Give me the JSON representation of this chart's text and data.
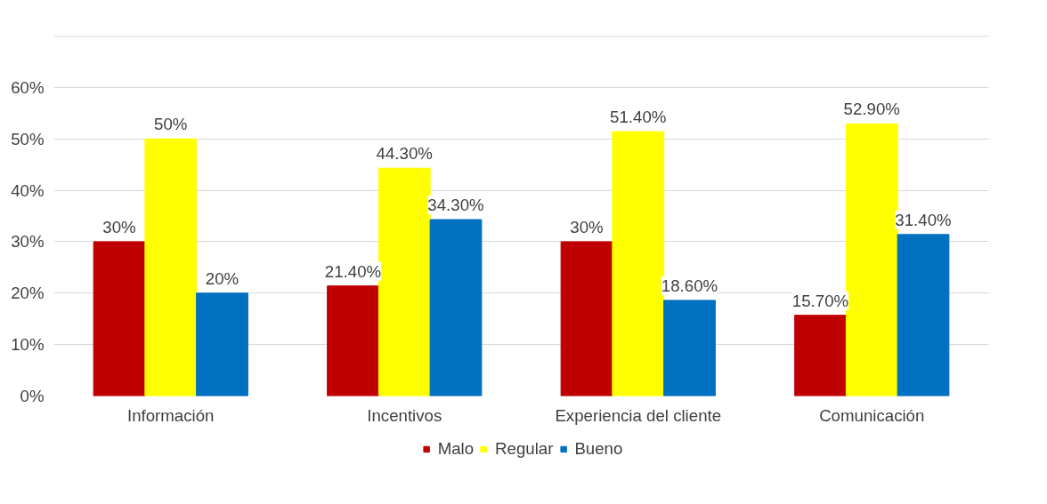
{
  "chart_data": {
    "type": "bar",
    "categories": [
      "Información",
      "Incentivos",
      "Experiencia del cliente",
      "Comunicación"
    ],
    "series": [
      {
        "name": "Malo",
        "color": "#c00000",
        "values": [
          30,
          21.4,
          30,
          15.7
        ],
        "value_labels": [
          "30%",
          "21.40%",
          "30%",
          "15.70%"
        ]
      },
      {
        "name": "Regular",
        "color": "#ffff00",
        "values": [
          50,
          44.3,
          51.4,
          52.9
        ],
        "value_labels": [
          "50%",
          "44.30%",
          "51.40%",
          "52.90%"
        ]
      },
      {
        "name": "Bueno",
        "color": "#0070c0",
        "values": [
          20,
          34.3,
          18.6,
          31.4
        ],
        "value_labels": [
          "20%",
          "34.30%",
          "18.60%",
          "31.40%"
        ]
      }
    ],
    "ylim": [
      0,
      70
    ],
    "yticks": [
      {
        "value": 0,
        "label": "0%"
      },
      {
        "value": 10,
        "label": "10%"
      },
      {
        "value": 20,
        "label": "20%"
      },
      {
        "value": 30,
        "label": "30%"
      },
      {
        "value": 40,
        "label": "40%"
      },
      {
        "value": 50,
        "label": "50%"
      },
      {
        "value": 60,
        "label": "60%"
      },
      {
        "value": 70,
        "label": null
      }
    ],
    "grid": "y",
    "legend": "bottom"
  }
}
